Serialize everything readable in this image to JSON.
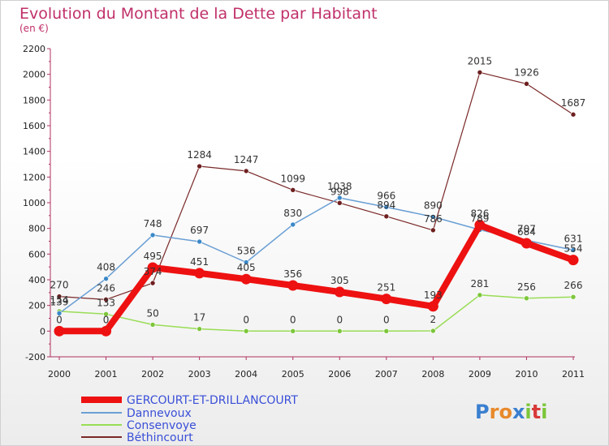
{
  "title": "Evolution du Montant de la Dette par Habitant",
  "subtitle": "(en €)",
  "brand": "Proxiti",
  "colors": {
    "title": "#c0306a",
    "gercourt": "#ee1111",
    "dannevoux": "#6a9fd4",
    "consenvoye": "#99dd55",
    "bethincourt": "#7a2828",
    "legend_text": "#3a4fd8"
  },
  "chart_data": {
    "type": "line",
    "categories": [
      "2000",
      "2001",
      "2002",
      "2003",
      "2004",
      "2005",
      "2006",
      "2007",
      "2008",
      "2009",
      "2010",
      "2011"
    ],
    "ylim": [
      -200,
      2200
    ],
    "yticks": [
      -200,
      0,
      200,
      400,
      600,
      800,
      1000,
      1200,
      1400,
      1600,
      1800,
      2000,
      2200
    ],
    "grid": false,
    "legend_position": "bottom-left",
    "series": [
      {
        "key": "gercourt",
        "name": "GERCOURT-ET-DRILLANCOURT",
        "values": [
          0,
          0,
          495,
          451,
          405,
          356,
          305,
          251,
          193,
          826,
          684,
          554
        ]
      },
      {
        "key": "dannevoux",
        "name": "Dannevoux",
        "values": [
          139,
          408,
          748,
          697,
          536,
          830,
          1038,
          966,
          890,
          789,
          707,
          631
        ]
      },
      {
        "key": "consenvoye",
        "name": "Consenvoye",
        "values": [
          154,
          133,
          50,
          17,
          0,
          0,
          0,
          0,
          2,
          281,
          256,
          266
        ]
      },
      {
        "key": "bethincourt",
        "name": "Béthincourt",
        "values": [
          270,
          246,
          374,
          1284,
          1247,
          1099,
          998,
          894,
          786,
          2015,
          1926,
          1687
        ]
      }
    ],
    "data_labels": [
      {
        "series": "gercourt",
        "texts": [
          "0",
          "0",
          "495",
          "451",
          "405",
          "356",
          "305",
          "251",
          "193",
          "826",
          "684",
          "554"
        ]
      },
      {
        "series": "dannevoux",
        "texts": [
          "139",
          "408",
          "748",
          "697",
          "536",
          "830",
          "1038",
          "966",
          "890",
          "789",
          "707",
          "631"
        ]
      },
      {
        "series": "consenvoye",
        "texts": [
          "154",
          "133",
          "50",
          "17",
          "0",
          "0",
          "0",
          "0",
          "2",
          "281",
          "256",
          "266"
        ]
      },
      {
        "series": "bethincourt",
        "texts": [
          "270",
          "246",
          "374",
          "1284",
          "1247",
          "1099",
          "998",
          "894",
          "786",
          "2015",
          "1926",
          "1687"
        ]
      }
    ]
  }
}
